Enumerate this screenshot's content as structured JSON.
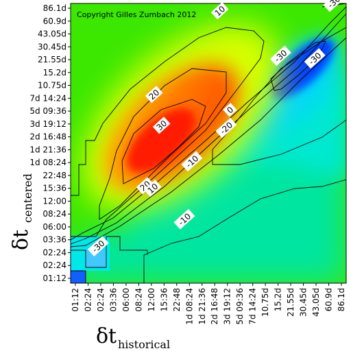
{
  "chart_data": {
    "type": "heatmap",
    "copyright": "Copyright Gilles Zumbach 2012",
    "x_axis": {
      "symbol": "δt",
      "subscript": "historical",
      "tick_labels": [
        "01:12",
        "02:24",
        "02:24",
        "03:36",
        "06:00",
        "08:24",
        "12:00",
        "15:36",
        "22:48",
        "1d 08:24",
        "1d 21:36",
        "2d 16:48",
        "3d 19:12",
        "5d 09:36",
        "7d 14:24",
        "10.75d",
        "15.2d",
        "21.55d",
        "30.45d",
        "43.05d",
        "60.9d",
        "86.1d"
      ]
    },
    "y_axis": {
      "symbol": "δt",
      "subscript": "centered",
      "tick_labels": [
        "01:12",
        "02:24",
        "02:24",
        "03:36",
        "06:00",
        "08:24",
        "12:00",
        "15:36",
        "22:48",
        "1d 08:24",
        "1d 21:36",
        "2d 16:48",
        "3d 19:12",
        "5d 09:36",
        "7d 14:24",
        "10.75d",
        "15.2d",
        "21.55d",
        "30.45d",
        "43.05d",
        "60.9d",
        "86.1d"
      ]
    },
    "color_scale": {
      "low_color": "#0000ff",
      "mid_color": "#00ff00",
      "high_color": "#ff0000",
      "range": [
        -50,
        50
      ]
    },
    "contour_labels": [
      {
        "text": "10",
        "col": 11.4,
        "row": 20.8
      },
      {
        "text": "20",
        "col": 6.2,
        "row": 14.3
      },
      {
        "text": "30",
        "col": 6.8,
        "row": 11.9
      },
      {
        "text": "20",
        "col": 5.5,
        "row": 7.2
      },
      {
        "text": "10",
        "col": 6.1,
        "row": 7.0
      },
      {
        "text": "0",
        "col": 12.2,
        "row": 13.1
      },
      {
        "text": "-10",
        "col": 9.2,
        "row": 9.1
      },
      {
        "text": "-20",
        "col": 11.9,
        "row": 11.7
      },
      {
        "text": "-30",
        "col": 16.2,
        "row": 17.3
      },
      {
        "text": "-30",
        "col": 18.9,
        "row": 17.1
      },
      {
        "text": "-10",
        "col": 8.6,
        "row": 4.6
      },
      {
        "text": "-30",
        "col": 1.8,
        "row": 2.5
      },
      {
        "text": "-30",
        "col": 20.4,
        "row": 21.5
      }
    ]
  }
}
